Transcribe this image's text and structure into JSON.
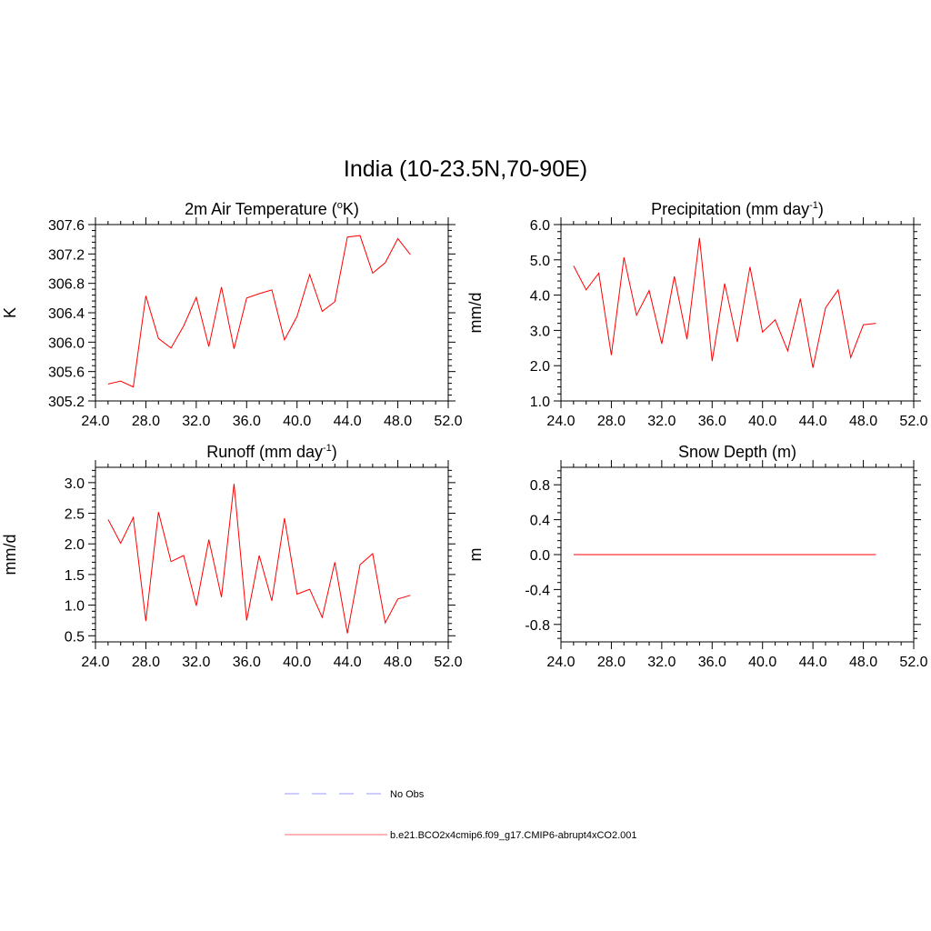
{
  "main_title": "India (10-23.5N,70-90E)",
  "chart_data": [
    {
      "type": "line",
      "title": "2m Air Temperature (",
      "title_sup": "o",
      "title_tail": "K)",
      "ylabel": "K",
      "xlim": [
        24,
        52
      ],
      "ylim": [
        305.2,
        307.6
      ],
      "xticks": [
        24,
        28,
        32,
        36,
        40,
        44,
        48,
        52
      ],
      "xtick_labels": [
        "24.0",
        "28.0",
        "32.0",
        "36.0",
        "40.0",
        "44.0",
        "48.0",
        "52.0"
      ],
      "yticks": [
        305.2,
        305.6,
        306.0,
        306.4,
        306.8,
        307.2,
        307.6
      ],
      "ytick_labels": [
        "305.2",
        "305.6",
        "306.0",
        "306.4",
        "306.8",
        "307.2",
        "307.6"
      ],
      "grid": false,
      "series": [
        {
          "name": "b.e21.BCO2x4cmip6.f09_g17.CMIP6-abrupt4xCO2.001",
          "color": "#ff0000",
          "x": [
            25,
            26,
            27,
            28,
            29,
            30,
            31,
            32,
            33,
            34,
            35,
            36,
            37,
            38,
            39,
            40,
            41,
            42,
            43,
            44,
            45,
            46,
            47,
            48,
            49
          ],
          "y": [
            305.43,
            305.47,
            305.39,
            306.63,
            306.05,
            305.92,
            306.22,
            306.61,
            305.94,
            306.75,
            305.91,
            306.6,
            306.66,
            306.71,
            306.03,
            306.35,
            306.92,
            306.42,
            306.55,
            307.43,
            307.45,
            306.94,
            307.08,
            307.41,
            307.19
          ]
        }
      ]
    },
    {
      "type": "line",
      "title": "Precipitation (mm day",
      "title_sup": "-1",
      "title_tail": ")",
      "ylabel": "mm/d",
      "xlim": [
        24,
        52
      ],
      "ylim": [
        1.0,
        6.0
      ],
      "xticks": [
        24,
        28,
        32,
        36,
        40,
        44,
        48,
        52
      ],
      "xtick_labels": [
        "24.0",
        "28.0",
        "32.0",
        "36.0",
        "40.0",
        "44.0",
        "48.0",
        "52.0"
      ],
      "yticks": [
        1.0,
        2.0,
        3.0,
        4.0,
        5.0,
        6.0
      ],
      "ytick_labels": [
        "1.0",
        "2.0",
        "3.0",
        "4.0",
        "5.0",
        "6.0"
      ],
      "grid": false,
      "series": [
        {
          "name": "b.e21.BCO2x4cmip6.f09_g17.CMIP6-abrupt4xCO2.001",
          "color": "#ff0000",
          "x": [
            25,
            26,
            27,
            28,
            29,
            30,
            31,
            32,
            33,
            34,
            35,
            36,
            37,
            38,
            39,
            40,
            41,
            42,
            43,
            44,
            45,
            46,
            47,
            48,
            49
          ],
          "y": [
            4.83,
            4.15,
            4.62,
            2.3,
            5.07,
            3.43,
            4.13,
            2.62,
            4.53,
            2.75,
            5.62,
            2.13,
            4.33,
            2.67,
            4.8,
            2.95,
            3.3,
            2.42,
            3.9,
            1.94,
            3.64,
            4.15,
            2.23,
            3.16,
            3.2
          ]
        }
      ]
    },
    {
      "type": "line",
      "title": "Runoff (mm day",
      "title_sup": "-1",
      "title_tail": ")",
      "ylabel": "mm/d",
      "xlim": [
        24,
        52
      ],
      "ylim": [
        0.4,
        3.25
      ],
      "xticks": [
        24,
        28,
        32,
        36,
        40,
        44,
        48,
        52
      ],
      "xtick_labels": [
        "24.0",
        "28.0",
        "32.0",
        "36.0",
        "40.0",
        "44.0",
        "48.0",
        "52.0"
      ],
      "yticks": [
        0.5,
        1.0,
        1.5,
        2.0,
        2.5,
        3.0
      ],
      "ytick_labels": [
        "0.5",
        "1.0",
        "1.5",
        "2.0",
        "2.5",
        "3.0"
      ],
      "grid": false,
      "series": [
        {
          "name": "b.e21.BCO2x4cmip6.f09_g17.CMIP6-abrupt4xCO2.001",
          "color": "#ff0000",
          "x": [
            25,
            26,
            27,
            28,
            29,
            30,
            31,
            32,
            33,
            34,
            35,
            36,
            37,
            38,
            39,
            40,
            41,
            42,
            43,
            44,
            45,
            46,
            47,
            48,
            49
          ],
          "y": [
            2.4,
            2.01,
            2.43,
            0.74,
            2.52,
            1.71,
            1.81,
            0.99,
            2.07,
            1.13,
            2.98,
            0.75,
            1.81,
            1.07,
            2.42,
            1.18,
            1.26,
            0.8,
            1.7,
            0.54,
            1.66,
            1.84,
            0.71,
            1.1,
            1.16
          ]
        }
      ]
    },
    {
      "type": "line",
      "title": "Snow Depth (m)",
      "title_sup": "",
      "title_tail": "",
      "ylabel": "m",
      "xlim": [
        24,
        52
      ],
      "ylim": [
        -1.0,
        1.0
      ],
      "xticks": [
        24,
        28,
        32,
        36,
        40,
        44,
        48,
        52
      ],
      "xtick_labels": [
        "24.0",
        "28.0",
        "32.0",
        "36.0",
        "40.0",
        "44.0",
        "48.0",
        "52.0"
      ],
      "yticks": [
        -0.8,
        -0.4,
        0.0,
        0.4,
        0.8
      ],
      "ytick_labels": [
        "-0.8",
        "-0.4",
        "0.0",
        "0.4",
        "0.8"
      ],
      "grid": false,
      "series": [
        {
          "name": "b.e21.BCO2x4cmip6.f09_g17.CMIP6-abrupt4xCO2.001",
          "color": "#ff0000",
          "x": [
            25,
            49
          ],
          "y": [
            0.0,
            0.0
          ]
        }
      ]
    }
  ],
  "legend": {
    "placement": "bottom-center",
    "entries": [
      {
        "label": "No Obs",
        "color": "#9999ff",
        "style": "dashed"
      },
      {
        "label": "b.e21.BCO2x4cmip6.f09_g17.CMIP6-abrupt4xCO2.001",
        "color": "#ff6b6b",
        "style": "solid"
      }
    ]
  }
}
